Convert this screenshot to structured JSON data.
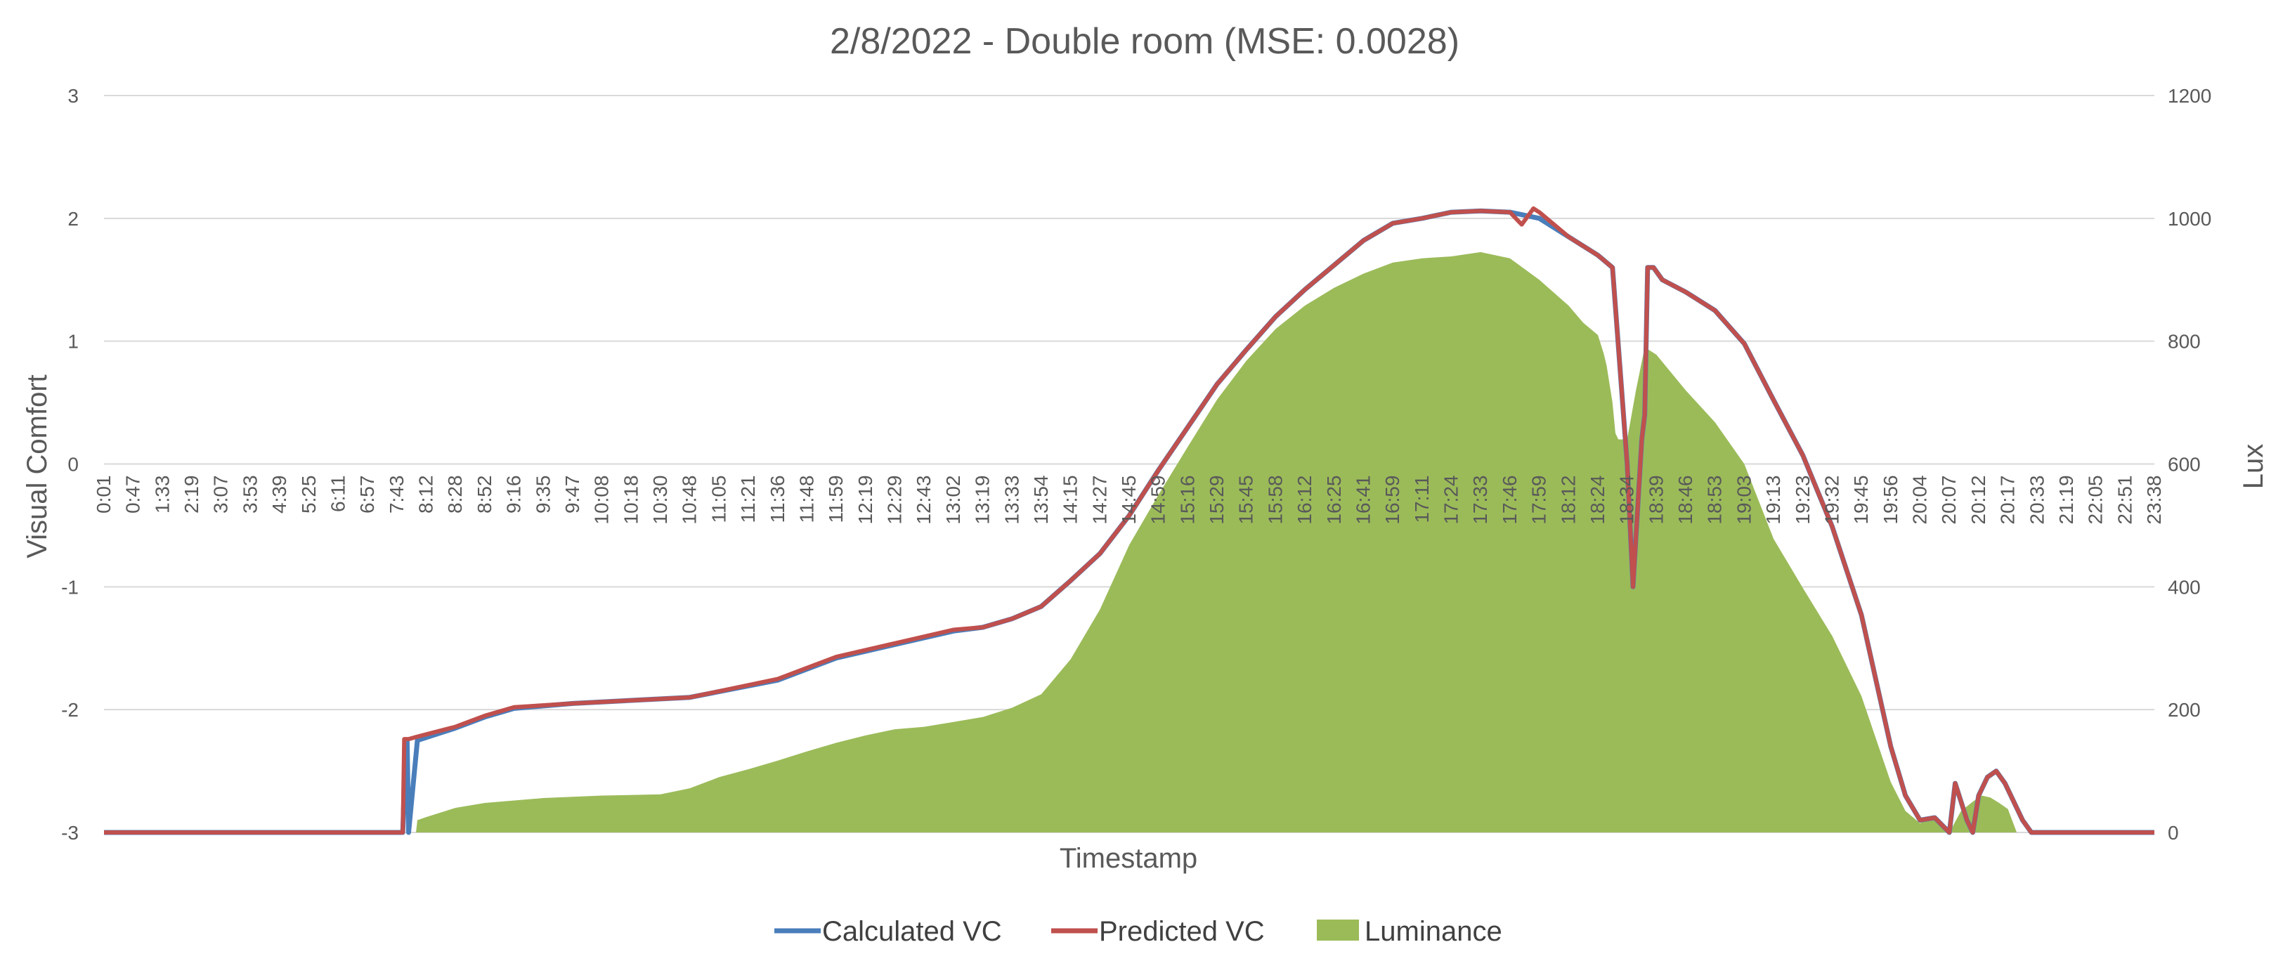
{
  "chart_data": {
    "type": "line",
    "title": "2/8/2022 - Double room (MSE: 0.0028)",
    "xlabel": "Timestamp",
    "ylabel": "Visual Comfort",
    "y2label": "Lux",
    "ylim": [
      -3,
      3
    ],
    "y2lim": [
      0,
      1200
    ],
    "yticks": [
      "3",
      "2",
      "1",
      "0",
      "-1",
      "-2",
      "-3"
    ],
    "y2ticks": [
      "1200",
      "1000",
      "800",
      "600",
      "400",
      "200",
      "0"
    ],
    "grid": true,
    "legend_position": "bottom",
    "x_tick_labels": [
      "0:01",
      "0:47",
      "1:33",
      "2:19",
      "3:07",
      "3:53",
      "4:39",
      "5:25",
      "6:11",
      "6:57",
      "7:43",
      "8:12",
      "8:28",
      "8:52",
      "9:16",
      "9:35",
      "9:47",
      "10:08",
      "10:18",
      "10:30",
      "10:48",
      "11:05",
      "11:21",
      "11:36",
      "11:48",
      "11:59",
      "12:19",
      "12:29",
      "12:43",
      "13:02",
      "13:19",
      "13:33",
      "13:54",
      "14:15",
      "14:27",
      "14:45",
      "14:59",
      "15:16",
      "15:29",
      "15:45",
      "15:58",
      "16:12",
      "16:25",
      "16:41",
      "16:59",
      "17:11",
      "17:24",
      "17:33",
      "17:46",
      "17:59",
      "18:12",
      "18:24",
      "18:34",
      "18:39",
      "18:46",
      "18:53",
      "19:03",
      "19:13",
      "19:23",
      "19:32",
      "19:45",
      "19:56",
      "20:04",
      "20:07",
      "20:12",
      "20:17",
      "20:33",
      "21:19",
      "22:05",
      "22:51",
      "23:38"
    ],
    "series": [
      {
        "name": "Calculated VC",
        "type": "line",
        "axis": "left",
        "color": "#4a7ebb",
        "x": [
          0,
          10.2,
          10.3,
          10.35,
          10.4,
          10.7,
          12,
          13,
          14,
          16,
          20,
          23,
          25,
          27,
          29,
          30,
          31,
          32,
          33,
          34,
          35,
          36,
          37,
          38,
          39,
          40,
          41,
          42,
          43,
          44,
          45,
          46,
          47,
          48,
          49,
          50,
          51,
          51.5,
          52,
          52.2,
          52.4,
          52.5,
          52.6,
          52.7,
          52.9,
          53.2,
          54,
          55,
          56,
          57,
          58,
          59,
          60,
          61,
          61.5,
          62,
          62.5,
          63,
          63.2,
          63.4,
          63.6,
          63.8,
          64,
          64.3,
          64.6,
          64.9,
          65.2,
          65.5,
          65.8,
          66,
          70
        ],
        "values": [
          -3,
          -3,
          -2.26,
          -2.26,
          -3,
          -2.25,
          -2.15,
          -2.06,
          -1.99,
          -1.95,
          -1.9,
          -1.76,
          -1.58,
          -1.47,
          -1.36,
          -1.33,
          -1.26,
          -1.16,
          -0.95,
          -0.73,
          -0.42,
          -0.05,
          0.3,
          0.65,
          0.93,
          1.2,
          1.42,
          1.62,
          1.82,
          1.96,
          2.0,
          2.05,
          2.06,
          2.05,
          2.0,
          1.85,
          1.7,
          1.6,
          0.0,
          -1.0,
          -0.2,
          0.2,
          0.4,
          1.6,
          1.6,
          1.5,
          1.4,
          1.25,
          0.98,
          0.52,
          0.07,
          -0.51,
          -1.23,
          -2.3,
          -2.7,
          -2.9,
          -2.88,
          -3.0,
          -2.6,
          -2.75,
          -2.9,
          -3.0,
          -2.7,
          -2.55,
          -2.5,
          -2.6,
          -2.75,
          -2.9,
          -3.0,
          -3.0,
          -3.0
        ]
      },
      {
        "name": "Predicted VC",
        "type": "line",
        "axis": "left",
        "color": "#c0504d",
        "x": [
          0,
          10.2,
          10.25,
          10.4,
          10.7,
          12,
          13,
          14,
          16,
          20,
          23,
          25,
          27,
          29,
          30,
          31,
          32,
          33,
          34,
          35,
          36,
          37,
          38,
          39,
          40,
          41,
          42,
          43,
          44,
          45,
          46,
          47,
          48,
          48.4,
          48.8,
          49,
          50,
          51,
          51.5,
          52,
          52.2,
          52.4,
          52.5,
          52.6,
          52.7,
          52.9,
          53.2,
          54,
          55,
          56,
          57,
          58,
          59,
          60,
          61,
          61.5,
          62,
          62.5,
          63,
          63.2,
          63.4,
          63.6,
          63.8,
          64,
          64.3,
          64.6,
          64.9,
          65.2,
          65.5,
          65.8,
          66,
          70
        ],
        "values": [
          -3,
          -3,
          -2.24,
          -2.24,
          -2.22,
          -2.14,
          -2.05,
          -1.98,
          -1.95,
          -1.9,
          -1.75,
          -1.57,
          -1.46,
          -1.35,
          -1.33,
          -1.26,
          -1.16,
          -0.95,
          -0.73,
          -0.42,
          -0.05,
          0.3,
          0.65,
          0.93,
          1.2,
          1.42,
          1.62,
          1.82,
          1.96,
          2.0,
          2.05,
          2.06,
          2.05,
          1.95,
          2.08,
          2.05,
          1.85,
          1.7,
          1.6,
          0.0,
          -1.0,
          -0.2,
          0.2,
          0.4,
          1.6,
          1.6,
          1.5,
          1.4,
          1.25,
          0.98,
          0.52,
          0.07,
          -0.51,
          -1.23,
          -2.3,
          -2.7,
          -2.9,
          -2.88,
          -3.0,
          -2.6,
          -2.75,
          -2.9,
          -3.0,
          -2.7,
          -2.55,
          -2.5,
          -2.6,
          -2.75,
          -2.9,
          -3.0,
          -3.0,
          -3.0
        ]
      },
      {
        "name": "Luminance",
        "type": "area",
        "axis": "right",
        "color": "#9bbb59",
        "x": [
          0,
          10.65,
          10.7,
          11,
          12,
          13,
          15,
          17,
          19,
          20,
          21,
          22,
          23,
          24,
          25,
          26,
          27,
          28,
          29,
          30,
          31,
          32,
          33,
          34,
          35,
          36,
          37,
          38,
          39,
          40,
          41,
          42,
          43,
          44,
          45,
          46,
          47,
          48,
          49,
          50,
          50.5,
          51,
          51.2,
          51.3,
          51.5,
          51.6,
          51.7,
          52,
          52.3,
          52.6,
          53,
          54,
          55,
          56,
          57,
          58,
          59,
          60,
          61,
          61.5,
          62,
          62.5,
          63,
          63.4,
          63.8,
          64.1,
          64.4,
          64.7,
          65,
          65.3,
          70
        ],
        "values": [
          0,
          0,
          20,
          25,
          40,
          48,
          56,
          60,
          62,
          72,
          90,
          103,
          117,
          132,
          146,
          158,
          168,
          172,
          180,
          188,
          203,
          225,
          282,
          363,
          468,
          550,
          628,
          705,
          768,
          820,
          858,
          887,
          910,
          928,
          935,
          938,
          945,
          935,
          900,
          858,
          830,
          810,
          780,
          760,
          700,
          650,
          640,
          640,
          720,
          790,
          778,
          720,
          668,
          600,
          478,
          398,
          320,
          222,
          82,
          35,
          15,
          28,
          0,
          35,
          50,
          60,
          57,
          48,
          38,
          0,
          0
        ]
      }
    ]
  }
}
